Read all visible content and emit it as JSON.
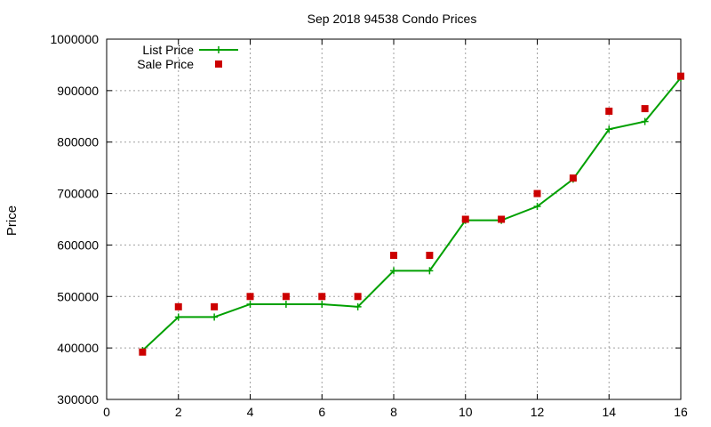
{
  "chart_data": {
    "type": "line",
    "title": "Sep 2018 94538 Condo Prices",
    "xlabel": "",
    "ylabel": "Price",
    "xlim": [
      0,
      16
    ],
    "ylim": [
      300000,
      1000000
    ],
    "x_ticks": [
      0,
      2,
      4,
      6,
      8,
      10,
      12,
      14,
      16
    ],
    "y_ticks": [
      300000,
      400000,
      500000,
      600000,
      700000,
      800000,
      900000,
      1000000
    ],
    "grid": true,
    "legend_position": "top-left",
    "series": [
      {
        "name": "List Price",
        "kind": "line-with-plus-markers",
        "color": "#00a000",
        "x": [
          1,
          2,
          3,
          4,
          5,
          6,
          7,
          8,
          9,
          10,
          11,
          12,
          13,
          14,
          15,
          16
        ],
        "values": [
          395000,
          460000,
          460000,
          485000,
          485000,
          485000,
          480000,
          550000,
          550000,
          648000,
          648000,
          675000,
          728000,
          825000,
          840000,
          925000
        ]
      },
      {
        "name": "Sale Price",
        "kind": "points-square",
        "color": "#cc0000",
        "x": [
          1,
          2,
          3,
          4,
          5,
          6,
          7,
          8,
          9,
          10,
          11,
          12,
          13,
          14,
          15,
          16
        ],
        "values": [
          392000,
          480000,
          480000,
          500000,
          500000,
          500000,
          500000,
          580000,
          580000,
          650000,
          650000,
          700000,
          730000,
          860000,
          865000,
          928000
        ]
      }
    ]
  }
}
